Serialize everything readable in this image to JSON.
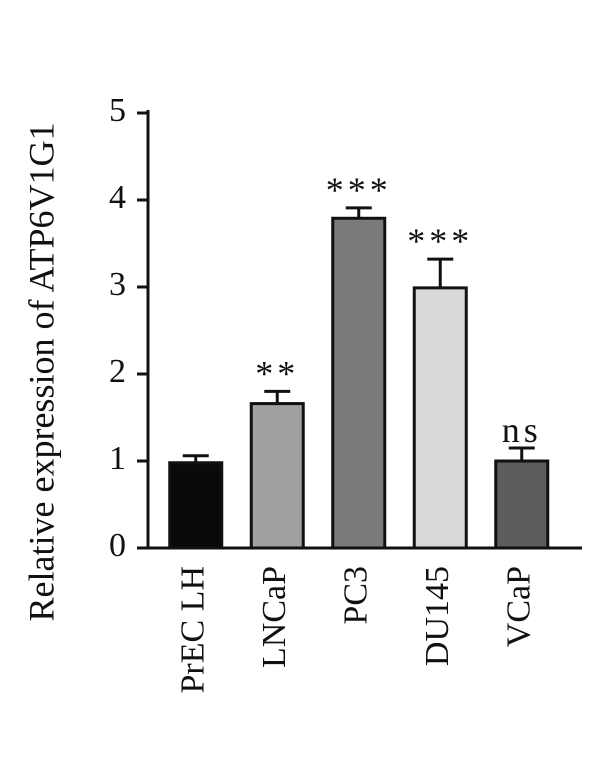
{
  "chart_data": {
    "type": "bar",
    "y_label": "Relative expression of ATP6V1G1",
    "categories": [
      "PrEC LH",
      "LNCaP",
      "PC3",
      "DU145",
      "VCaP"
    ],
    "values": [
      0.98,
      1.66,
      3.79,
      2.99,
      1.0
    ],
    "errors": [
      0.08,
      0.14,
      0.12,
      0.33,
      0.15
    ],
    "annotations": [
      null,
      "**",
      "***",
      "***",
      "ns"
    ],
    "colors": [
      "#0a0a0a",
      "#a0a0a0",
      "#7a7a7a",
      "#d9d9d9",
      "#5c5c5c"
    ],
    "ylim": [
      0,
      5
    ],
    "yticks": [
      0,
      1,
      2,
      3,
      4,
      5
    ]
  }
}
